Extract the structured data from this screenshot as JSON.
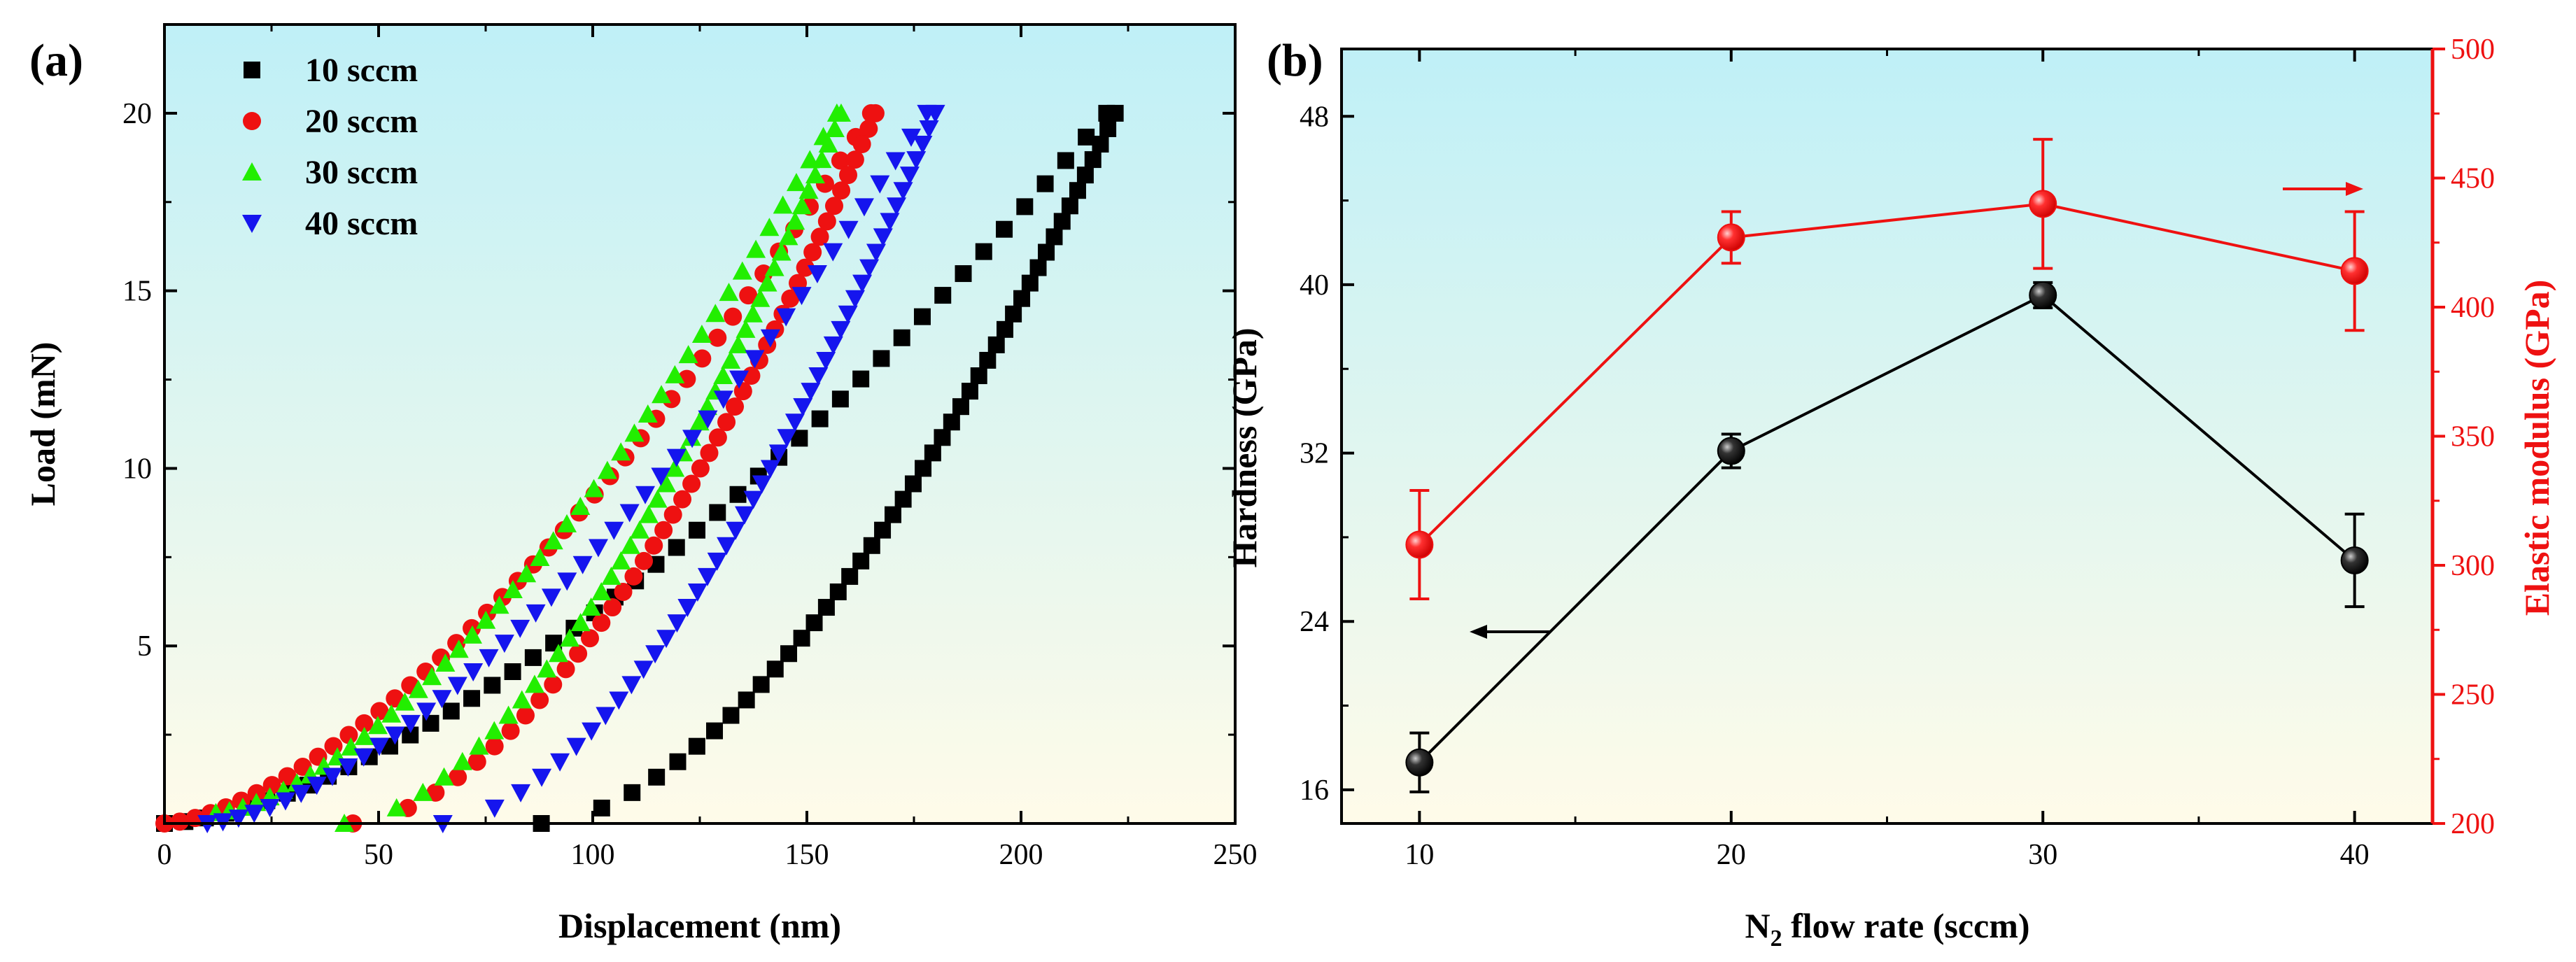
{
  "chart_data": [
    {
      "panel": "(a)",
      "type": "scatter",
      "xlabel": "Displacement (nm)",
      "ylabel": "Load (mN)",
      "xlim": [
        0,
        250
      ],
      "ylim": [
        0,
        22.5
      ],
      "xticks": [
        "0",
        "50",
        "100",
        "150",
        "200",
        "250"
      ],
      "yticks": [
        "5",
        "10",
        "15",
        "20"
      ],
      "legend_position": "top-left",
      "series": [
        {
          "name": "10 sccm",
          "marker": "square",
          "color": "#000000",
          "loading_start": [
            0,
            0
          ],
          "loading_end": [
            220,
            20
          ],
          "unloading_start": [
            222,
            20
          ],
          "unloading_end": [
            88,
            0
          ]
        },
        {
          "name": "20 sccm",
          "marker": "circle",
          "color": "#ee1111",
          "loading_start": [
            0,
            0
          ],
          "loading_end": [
            165,
            20
          ],
          "unloading_start": [
            166,
            20
          ],
          "unloading_end": [
            44,
            0
          ]
        },
        {
          "name": "30 sccm",
          "marker": "triangle-up",
          "color": "#22ee00",
          "loading_start": [
            12,
            0.3
          ],
          "loading_end": [
            157,
            20
          ],
          "unloading_start": [
            158,
            20
          ],
          "unloading_end": [
            42,
            0
          ]
        },
        {
          "name": "40 sccm",
          "marker": "triangle-down",
          "color": "#1515ee",
          "loading_start": [
            10,
            0
          ],
          "loading_end": [
            178,
            20
          ],
          "unloading_start": [
            180,
            20
          ],
          "unloading_end": [
            65,
            0
          ]
        }
      ]
    },
    {
      "panel": "(b)",
      "type": "line",
      "xlabel_main": "N",
      "xlabel_sub": "2",
      "xlabel_rest": " flow rate (sccm)",
      "ylabel_left": "Hardness (GPa)",
      "ylabel_right": "Elastic modulus (GPa)",
      "x": [
        10,
        20,
        30,
        40
      ],
      "xticks": [
        "10",
        "20",
        "30",
        "40"
      ],
      "xlim": [
        7.5,
        42.5
      ],
      "ylim_left": [
        14.4,
        51.2
      ],
      "ylim_right": [
        200,
        500
      ],
      "yticks_left": [
        "16",
        "24",
        "32",
        "40",
        "48"
      ],
      "yticks_right": [
        "200",
        "250",
        "300",
        "350",
        "400",
        "450",
        "500"
      ],
      "series": [
        {
          "name": "Hardness",
          "axis": "left",
          "color": "#000000",
          "values": [
            17.3,
            32.1,
            39.5,
            26.9
          ],
          "errors": [
            1.4,
            0.8,
            0.6,
            2.2
          ]
        },
        {
          "name": "Elastic modulus",
          "axis": "right",
          "color": "#ee1111",
          "values": [
            308,
            427,
            440,
            414
          ],
          "errors": [
            21,
            10,
            25,
            23
          ]
        }
      ]
    }
  ]
}
